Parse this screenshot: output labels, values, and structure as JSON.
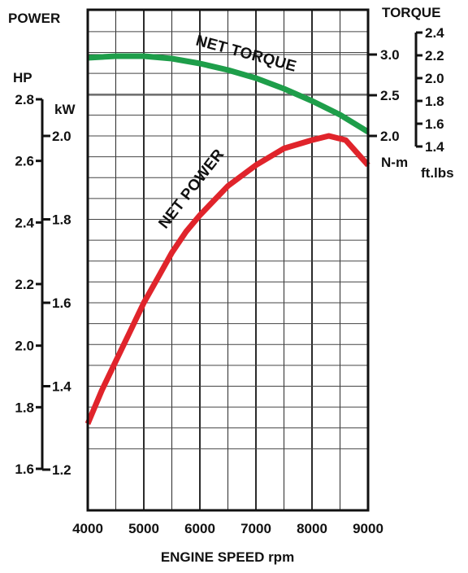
{
  "chart_data": {
    "type": "line",
    "title": "",
    "xlabel": "ENGINE SPEED rpm",
    "x_ticks": [
      "4000",
      "5000",
      "6000",
      "7000",
      "8000",
      "9000"
    ],
    "xlim": [
      4000,
      9000
    ],
    "power_axis": {
      "header": "POWER",
      "hp_label": "HP",
      "hp_ticks": [
        "1.6",
        "1.8",
        "2.0",
        "2.2",
        "2.4",
        "2.6",
        "2.8"
      ],
      "hp_range": [
        1.6,
        2.8
      ],
      "kw_label": "kW",
      "kw_ticks": [
        "1.2",
        "1.4",
        "1.6",
        "1.8",
        "2.0"
      ],
      "kw_range": [
        1.2,
        2.0
      ]
    },
    "torque_axis": {
      "header": "TORQUE",
      "nm_label": "N-m",
      "nm_ticks": [
        "2.0",
        "2.5",
        "3.0"
      ],
      "nm_range": [
        2.0,
        3.0
      ],
      "ftlbs_label": "ft.lbs",
      "ftlbs_ticks": [
        "1.4",
        "1.6",
        "1.8",
        "2.0",
        "2.2",
        "2.4"
      ],
      "ftlbs_range": [
        1.4,
        2.4
      ]
    },
    "series": [
      {
        "name": "NET TORQUE",
        "axis": "torque_nm",
        "color": "#1e9e4a",
        "points": [
          [
            4000,
            2.96
          ],
          [
            4500,
            2.98
          ],
          [
            5000,
            2.98
          ],
          [
            5500,
            2.95
          ],
          [
            6000,
            2.89
          ],
          [
            6500,
            2.81
          ],
          [
            7000,
            2.71
          ],
          [
            7500,
            2.58
          ],
          [
            8000,
            2.43
          ],
          [
            8500,
            2.26
          ],
          [
            9000,
            2.05
          ]
        ]
      },
      {
        "name": "NET POWER",
        "axis": "power_kw",
        "color": "#e0242b",
        "points": [
          [
            4000,
            1.31
          ],
          [
            4250,
            1.39
          ],
          [
            4500,
            1.46
          ],
          [
            4750,
            1.53
          ],
          [
            5000,
            1.6
          ],
          [
            5250,
            1.66
          ],
          [
            5500,
            1.72
          ],
          [
            5750,
            1.77
          ],
          [
            6000,
            1.81
          ],
          [
            6500,
            1.88
          ],
          [
            7000,
            1.93
          ],
          [
            7500,
            1.97
          ],
          [
            8000,
            1.99
          ],
          [
            8300,
            2.0
          ],
          [
            8600,
            1.99
          ],
          [
            8800,
            1.96
          ],
          [
            9000,
            1.93
          ]
        ]
      }
    ]
  }
}
